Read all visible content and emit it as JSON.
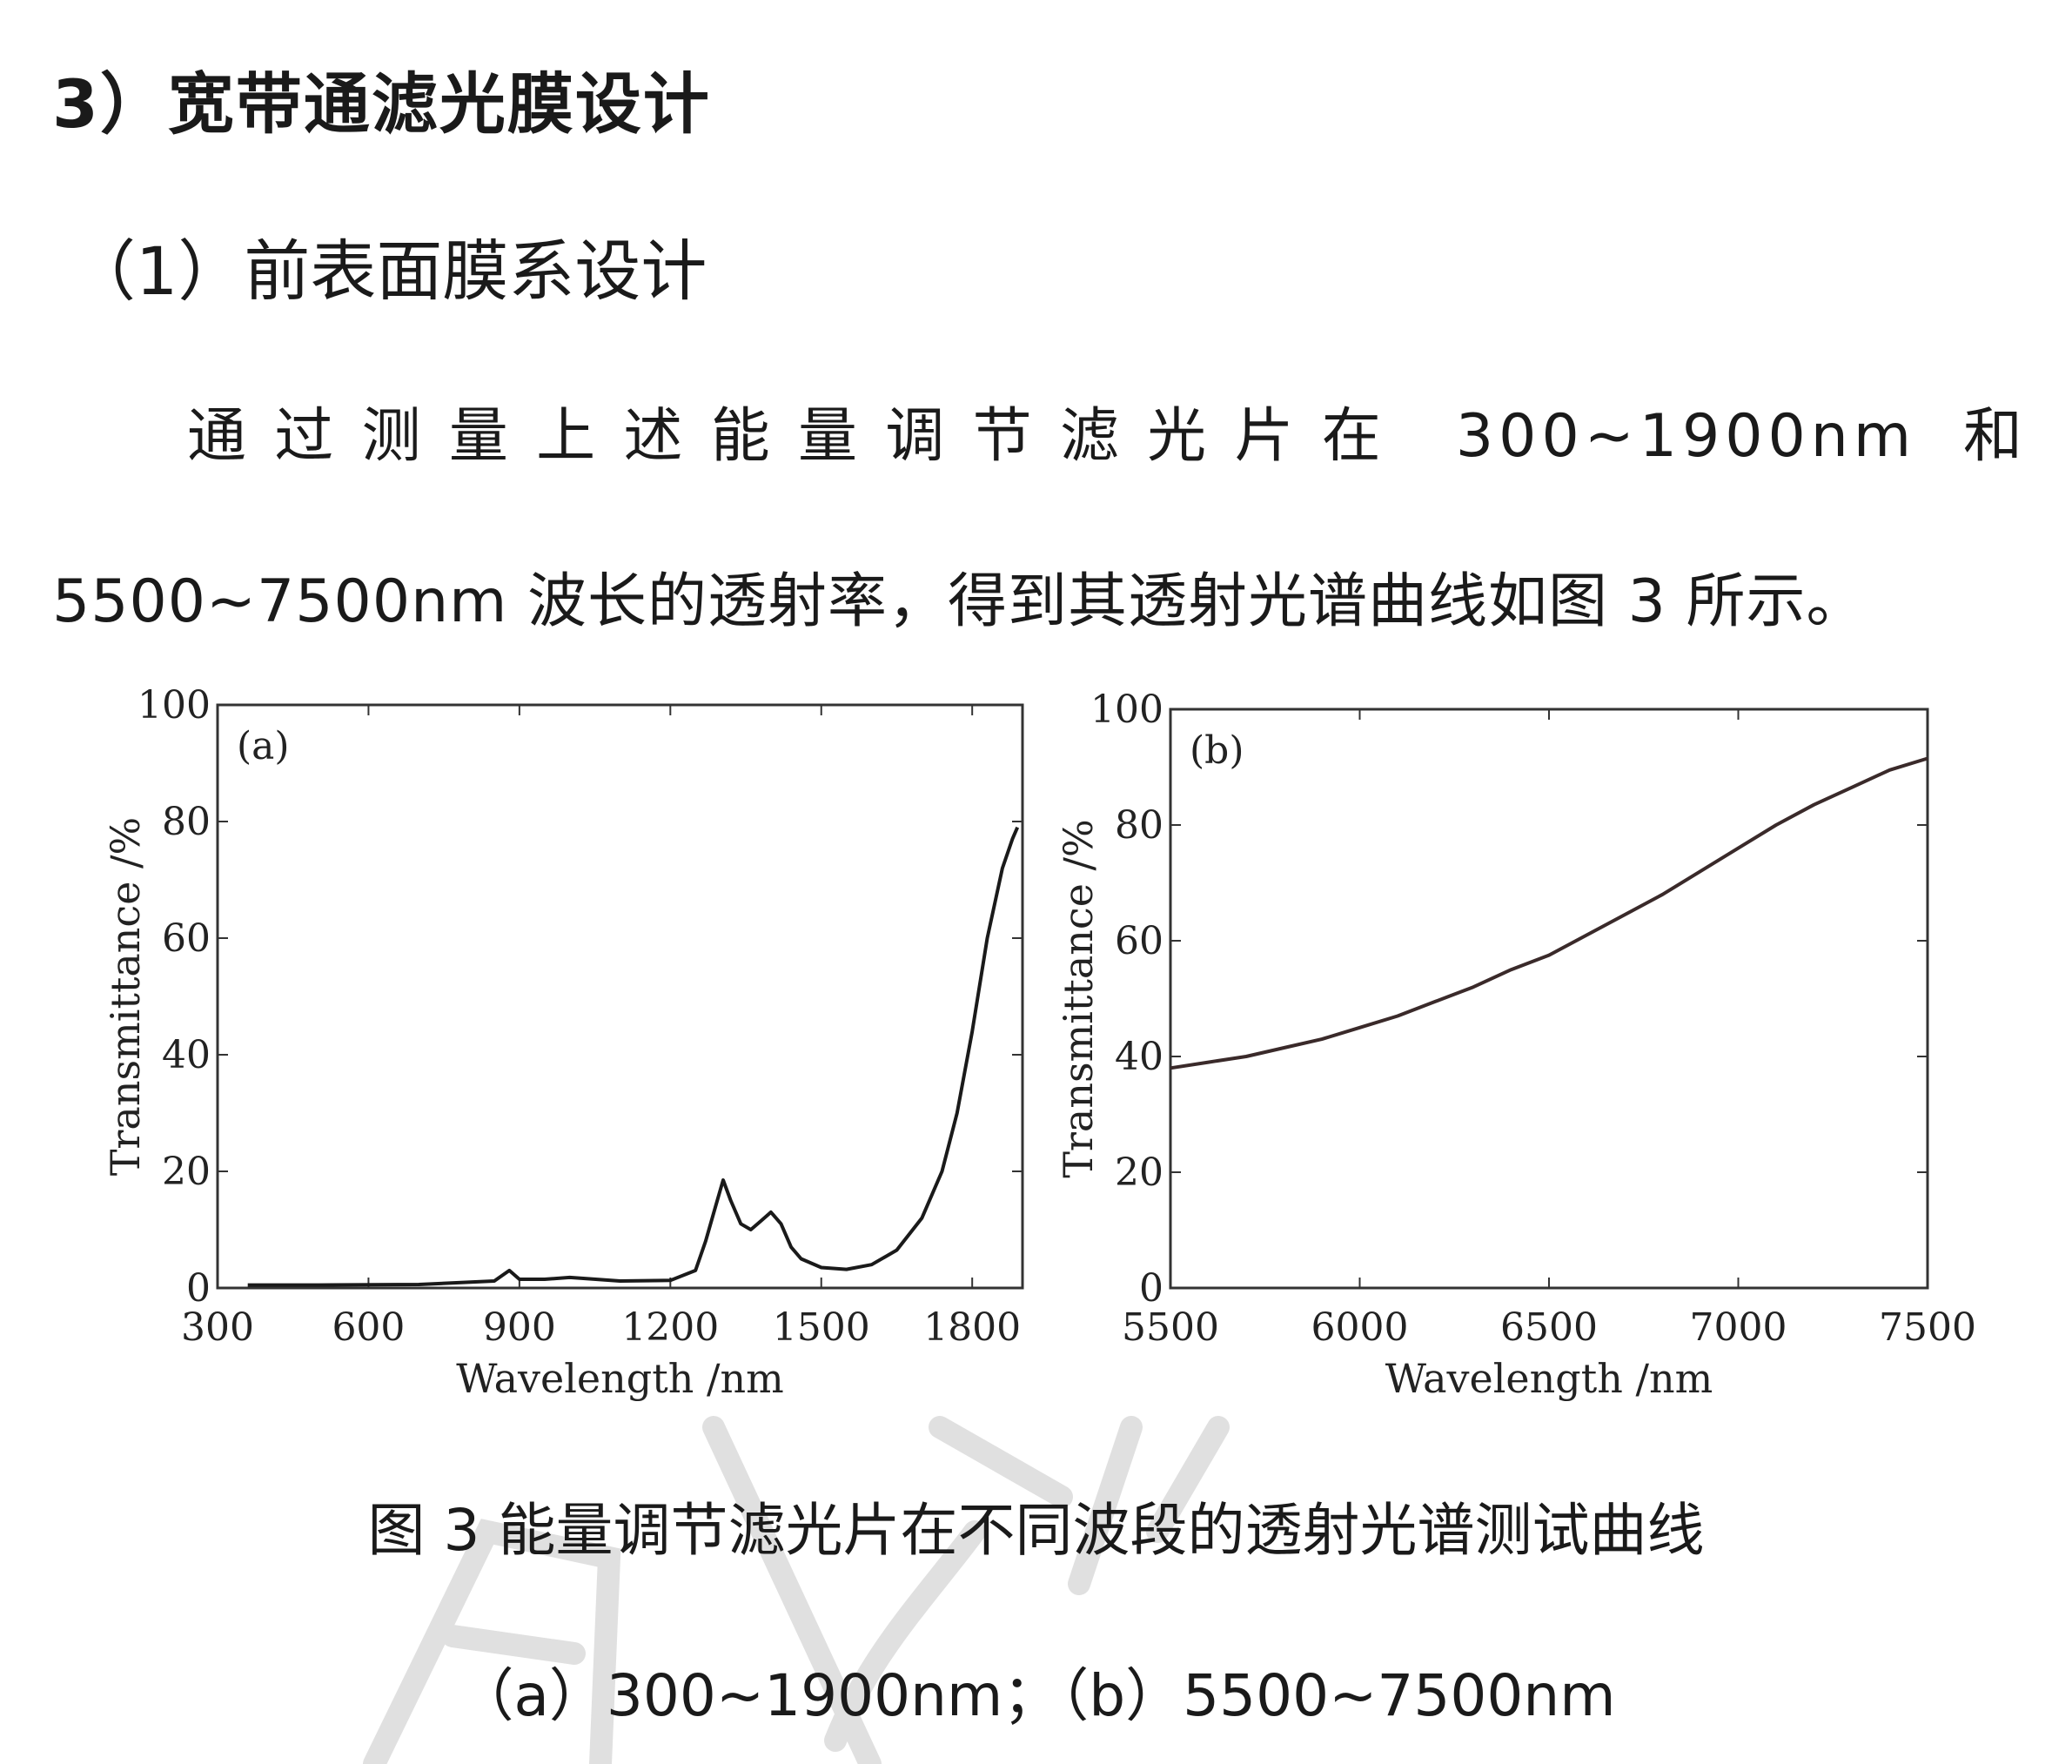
{
  "doc": {
    "heading": "3）宽带通滤光膜设计",
    "subheading": "（1）前表面膜系设计",
    "para_line1": "通过测量上述能量调节滤光片在 300~1900nm 和",
    "para_line2": "5500~7500nm 波长的透射率，得到其透射光谱曲线如图 3 所示。",
    "caption_line1": "图 3  能量调节滤光片在不同波段的透射光谱测试曲线",
    "caption_line2": "（a）300~1900nm；（b）5500~7500nm"
  },
  "chart_data": [
    {
      "type": "line",
      "panel_label": "(a)",
      "xlabel": "Wavelength /nm",
      "ylabel": "Transmittance /%",
      "xlim": [
        300,
        1900
      ],
      "ylim": [
        0,
        100
      ],
      "xticks": [
        300,
        600,
        900,
        1200,
        1500,
        1800
      ],
      "yticks": [
        0,
        20,
        40,
        60,
        80,
        100
      ],
      "grid": false,
      "line_color": "#1a1a1a",
      "series": [
        {
          "x": [
            360,
            500,
            700,
            850,
            880,
            900,
            950,
            1000,
            1100,
            1200,
            1250,
            1270,
            1290,
            1305,
            1320,
            1340,
            1360,
            1380,
            1400,
            1420,
            1440,
            1460,
            1500,
            1550,
            1600,
            1650,
            1700,
            1740,
            1770,
            1800,
            1830,
            1860,
            1880,
            1890
          ],
          "y": [
            0.5,
            0.5,
            0.6,
            1.2,
            3,
            1.5,
            1.5,
            1.8,
            1.2,
            1.3,
            3,
            8,
            14,
            18.5,
            15,
            11,
            10,
            11.5,
            13,
            11,
            7,
            5,
            3.5,
            3.2,
            4,
            6.5,
            12,
            20,
            30,
            44,
            60,
            72,
            77,
            79
          ]
        }
      ]
    },
    {
      "type": "line",
      "panel_label": "(b)",
      "xlabel": "Wavelength /nm",
      "ylabel": "Transmittance /%",
      "xlim": [
        5500,
        7500
      ],
      "ylim": [
        0,
        100
      ],
      "xticks": [
        5500,
        6000,
        6500,
        7000,
        7500
      ],
      "yticks": [
        0,
        20,
        40,
        60,
        80,
        100
      ],
      "grid": false,
      "line_color": "#3a2a2a",
      "series": [
        {
          "x": [
            5500,
            5600,
            5700,
            5800,
            5900,
            6000,
            6100,
            6200,
            6300,
            6400,
            6500,
            6600,
            6700,
            6800,
            6900,
            7000,
            7100,
            7200,
            7300,
            7400,
            7500
          ],
          "y": [
            38,
            39,
            40,
            41.5,
            43,
            45,
            47,
            49.5,
            52,
            55,
            57.5,
            61,
            64.5,
            68,
            72,
            76,
            80,
            83.5,
            86.5,
            89.5,
            91.5
          ]
        }
      ]
    }
  ]
}
